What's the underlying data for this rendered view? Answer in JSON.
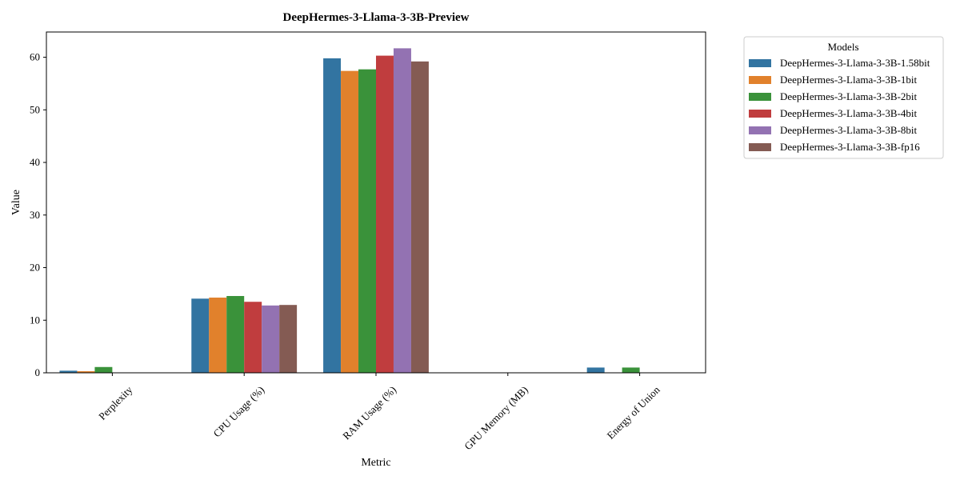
{
  "chart_data": {
    "type": "bar",
    "title": "DeepHermes-3-Llama-3-3B-Preview",
    "xlabel": "Metric",
    "ylabel": "Value",
    "ylim": [
      0,
      64.8
    ],
    "yticks": [
      0,
      10,
      20,
      30,
      40,
      50,
      60
    ],
    "grid": false,
    "legend": {
      "title": "Models",
      "placement": "outside-top-right"
    },
    "categories": [
      "Perplexity",
      "CPU Usage (%)",
      "RAM Usage (%)",
      "GPU Memory (MB)",
      "Energy of Union"
    ],
    "series": [
      {
        "name": "DeepHermes-3-Llama-3-3B-1.58bit",
        "color": "#3274a1",
        "values": [
          0.4,
          14.1,
          59.8,
          0,
          1.0
        ]
      },
      {
        "name": "DeepHermes-3-Llama-3-3B-1bit",
        "color": "#e1812c",
        "values": [
          0.3,
          14.3,
          57.4,
          0,
          0
        ]
      },
      {
        "name": "DeepHermes-3-Llama-3-3B-2bit",
        "color": "#3a923a",
        "values": [
          1.1,
          14.6,
          57.7,
          0,
          1.0
        ]
      },
      {
        "name": "DeepHermes-3-Llama-3-3B-4bit",
        "color": "#c03d3e",
        "values": [
          0,
          13.5,
          60.3,
          0,
          0
        ]
      },
      {
        "name": "DeepHermes-3-Llama-3-3B-8bit",
        "color": "#9372b2",
        "values": [
          0,
          12.8,
          61.7,
          0,
          0
        ]
      },
      {
        "name": "DeepHermes-3-Llama-3-3B-fp16",
        "color": "#845b53",
        "values": [
          0,
          12.9,
          59.2,
          0,
          0
        ]
      }
    ]
  }
}
